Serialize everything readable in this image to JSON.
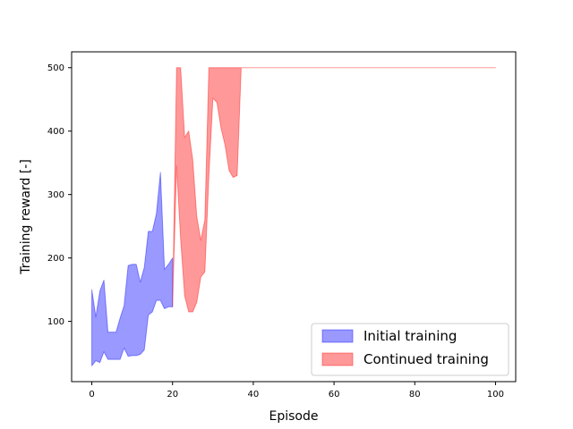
{
  "chart_data": {
    "type": "area",
    "title": "",
    "xlabel": "Episode",
    "ylabel": "Training reward [-]",
    "xlim": [
      -5,
      105
    ],
    "ylim": [
      5,
      525
    ],
    "xticks": [
      0,
      20,
      40,
      60,
      80,
      100
    ],
    "yticks": [
      100,
      200,
      300,
      400,
      500
    ],
    "grid": false,
    "legend_position": "lower-right",
    "series": [
      {
        "name": "Initial training",
        "color": "#0000ff",
        "x": [
          0,
          1,
          2,
          3,
          4,
          5,
          6,
          7,
          8,
          9,
          10,
          11,
          12,
          13,
          14,
          15,
          16,
          17,
          18,
          19,
          20
        ],
        "upper": [
          150,
          107,
          148,
          165,
          83,
          83,
          83,
          105,
          125,
          188,
          190,
          190,
          162,
          185,
          242,
          242,
          270,
          335,
          182,
          190,
          200
        ],
        "lower": [
          30,
          38,
          35,
          52,
          40,
          40,
          40,
          40,
          58,
          45,
          46,
          46,
          48,
          55,
          110,
          115,
          133,
          133,
          120,
          123,
          123
        ]
      },
      {
        "name": "Continued training",
        "color": "#ff0000",
        "x": [
          20,
          21,
          22,
          23,
          24,
          25,
          26,
          27,
          28,
          29,
          30,
          31,
          32,
          33,
          34,
          35,
          36,
          37,
          40,
          60,
          80,
          100
        ],
        "upper": [
          123,
          500,
          500,
          390,
          400,
          355,
          265,
          228,
          260,
          500,
          500,
          500,
          500,
          500,
          500,
          500,
          500,
          500,
          500,
          500,
          500,
          500
        ],
        "lower": [
          123,
          345,
          230,
          140,
          115,
          115,
          130,
          170,
          178,
          330,
          452,
          445,
          405,
          378,
          338,
          327,
          330,
          500,
          500,
          500,
          500,
          500
        ]
      }
    ]
  }
}
